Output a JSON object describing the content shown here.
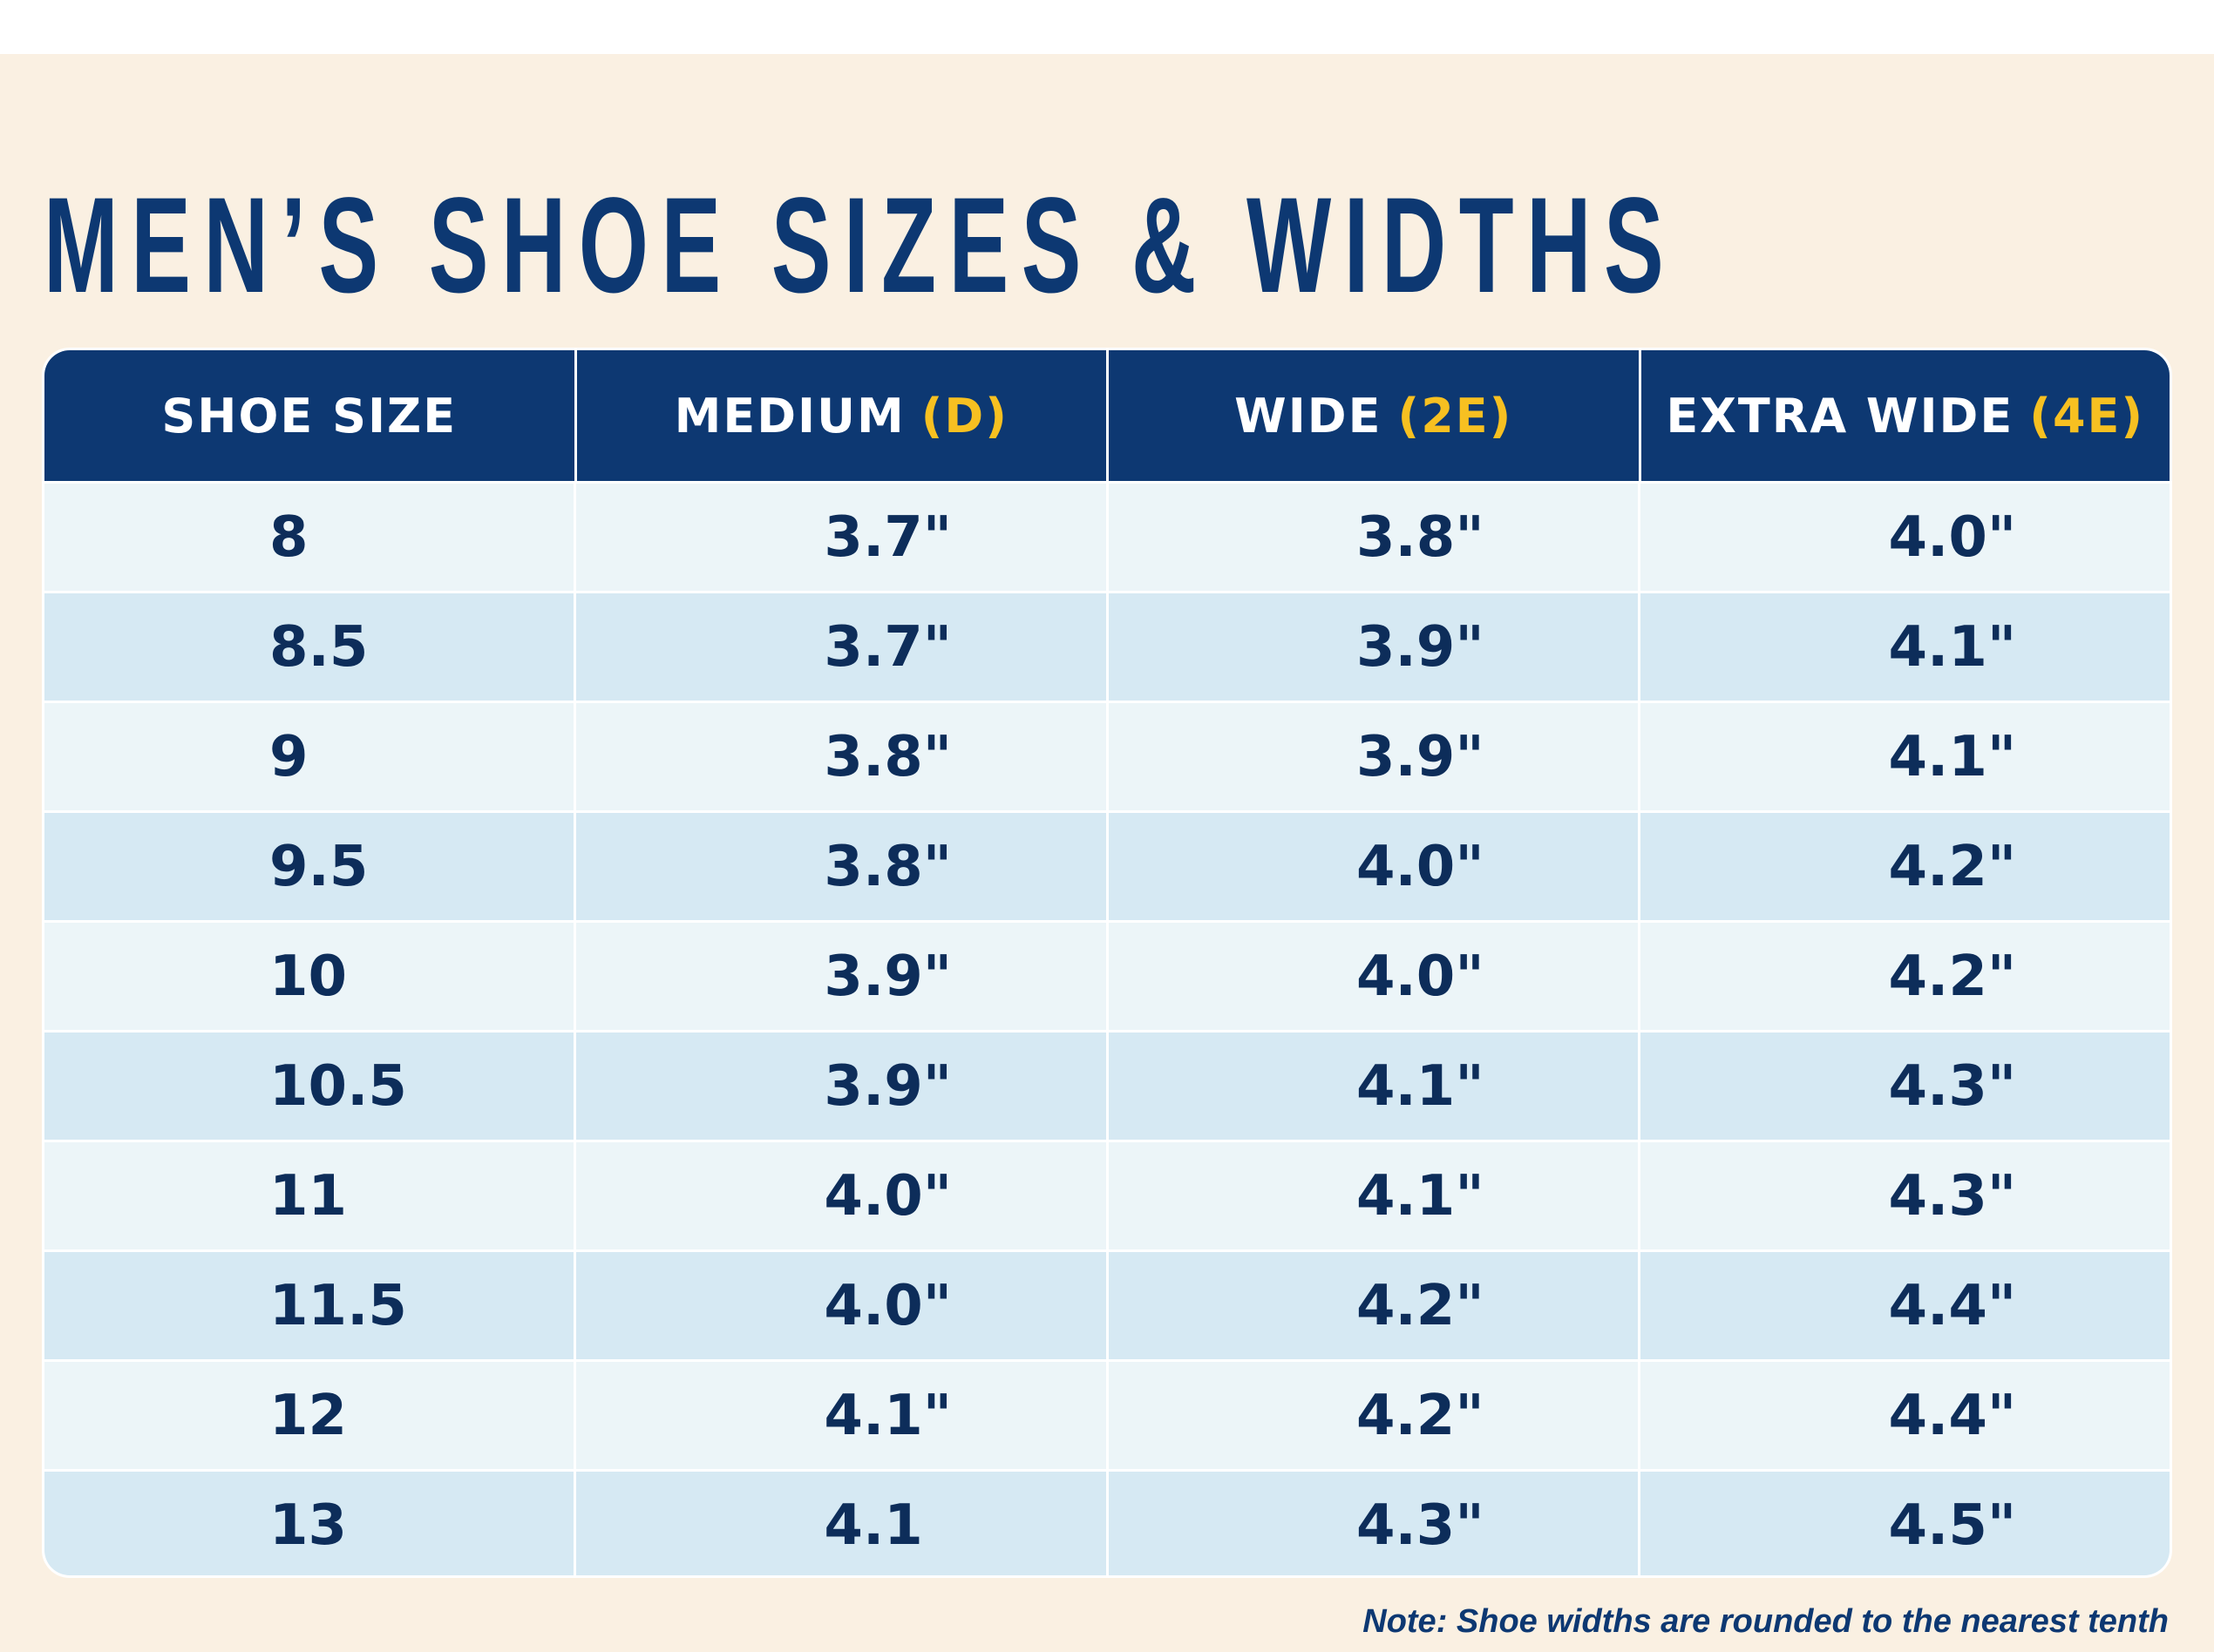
{
  "title": "MEN’S SHOE SIZES & WIDTHS",
  "table": {
    "headers": [
      {
        "label": "SHOE SIZE",
        "code": ""
      },
      {
        "label": "MEDIUM",
        "code": "(D)"
      },
      {
        "label": "WIDE",
        "code": "(2E)"
      },
      {
        "label": "EXTRA WIDE",
        "code": "(4E)"
      }
    ],
    "rows": [
      [
        "8",
        "3.7\"",
        "3.8\"",
        "4.0\""
      ],
      [
        "8.5",
        "3.7\"",
        "3.9\"",
        "4.1\""
      ],
      [
        "9",
        "3.8\"",
        "3.9\"",
        "4.1\""
      ],
      [
        "9.5",
        "3.8\"",
        "4.0\"",
        "4.2\""
      ],
      [
        "10",
        "3.9\"",
        "4.0\"",
        "4.2\""
      ],
      [
        "10.5",
        "3.9\"",
        "4.1\"",
        "4.3\""
      ],
      [
        "11",
        "4.0\"",
        "4.1\"",
        "4.3\""
      ],
      [
        "11.5",
        "4.0\"",
        "4.2\"",
        "4.4\""
      ],
      [
        "12",
        "4.1\"",
        "4.2\"",
        "4.4\""
      ],
      [
        "13",
        "4.1",
        "4.3\"",
        "4.5\""
      ]
    ]
  },
  "note": "Note: Shoe widths are rounded to the nearest tenth",
  "colors": {
    "navy": "#0d3872",
    "accent_yellow": "#f7c021",
    "background_cream": "#faf0e2",
    "row_light": "#ecf5f8",
    "row_blue": "#d6e9f3"
  }
}
